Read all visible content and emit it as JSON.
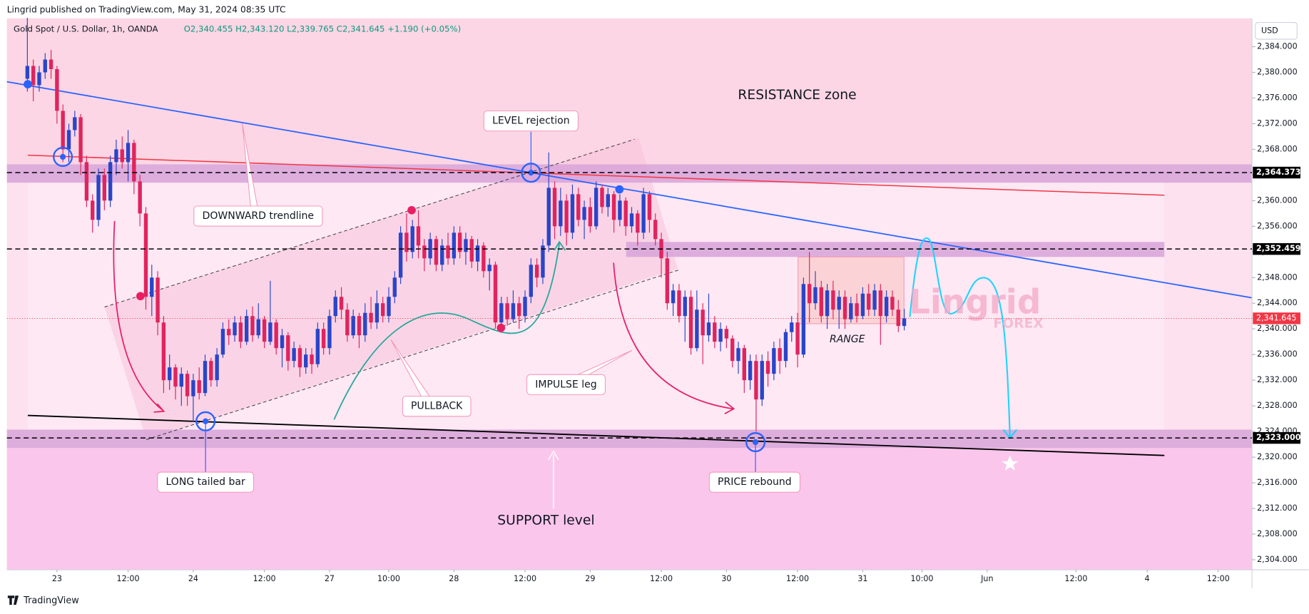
{
  "header": {
    "published": "Lingrid published on TradingView.com, May 31, 2024 08:35 UTC",
    "symbol": "Gold Spot / U.S. Dollar, 1h, OANDA",
    "ohlc": "O2,340.455 H2,343.120 L2,339.765 C2,341.645 +1.190 (+0.05%)",
    "currency": "USD"
  },
  "footer": {
    "brand": "TradingView"
  },
  "watermark": {
    "line1": "Lingrid",
    "line2": "FOREX"
  },
  "annotations": {
    "resistance": "RESISTANCE zone",
    "level_rejection": "LEVEL rejection",
    "downward": "DOWNWARD trendline",
    "pullback": "PULLBACK",
    "impulse": "IMPULSE leg",
    "long_tailed": "LONG tailed bar",
    "price_rebound": "PRICE rebound",
    "support": "SUPPORT level",
    "range": "RANGE"
  },
  "chart_data": {
    "type": "candlestick",
    "up_color": "#2a45c9",
    "down_color": "#e0245e",
    "grid": false,
    "x": [
      -5,
      -4,
      -3,
      -2,
      -1,
      0,
      1,
      2,
      3,
      4,
      5,
      6,
      7,
      8,
      9,
      10,
      11,
      12,
      13,
      14,
      15,
      16,
      17,
      18,
      19,
      20,
      21,
      22,
      23,
      24,
      25,
      26,
      27,
      28,
      29,
      30,
      31,
      32,
      33,
      34,
      35,
      36,
      37,
      38,
      39,
      40,
      41,
      42,
      43,
      44,
      45,
      46,
      47,
      48,
      49,
      50,
      51,
      52,
      53,
      54,
      55,
      56,
      57,
      58,
      59,
      60,
      61,
      62,
      63,
      64,
      65,
      66,
      67,
      68,
      69,
      70,
      71,
      72,
      73,
      74,
      75,
      76,
      77,
      78,
      79,
      80,
      81,
      82,
      83,
      84,
      85,
      86,
      87,
      88,
      89,
      90,
      91,
      92,
      93,
      94,
      95,
      96,
      97,
      98,
      99,
      100,
      101,
      102,
      103,
      104,
      105,
      106,
      107,
      108,
      109,
      110,
      111,
      112,
      113,
      114,
      115,
      116,
      117,
      118,
      119,
      120,
      121,
      122,
      123,
      124,
      125,
      126,
      127,
      128,
      129,
      130,
      131,
      132,
      133,
      134,
      135,
      136,
      137,
      138,
      139,
      140,
      141,
      142,
      143
    ],
    "open": [
      2379,
      2381,
      2378,
      2380,
      2382,
      2380.5,
      2374,
      2368,
      2371,
      2373,
      2366,
      2360,
      2357,
      2364,
      2360,
      2366,
      2368,
      2366,
      2369,
      2363,
      2358,
      2345,
      2348,
      2341,
      2332,
      2334,
      2331,
      2333,
      2329.5,
      2332,
      2330,
      2335,
      2332,
      2336,
      2340,
      2339,
      2341,
      2338,
      2342,
      2339,
      2341.5,
      2338,
      2341,
      2337,
      2339,
      2335,
      2337,
      2334,
      2336,
      2334.5,
      2340,
      2337,
      2342,
      2345,
      2343,
      2339,
      2342,
      2339,
      2342.5,
      2341,
      2344,
      2342,
      2345,
      2348,
      2355,
      2352,
      2356,
      2353,
      2351,
      2354,
      2350,
      2353,
      2351,
      2355,
      2352,
      2354,
      2350.5,
      2353,
      2349,
      2350,
      2341,
      2344,
      2341.5,
      2344,
      2342,
      2345,
      2350,
      2348,
      2353,
      2362,
      2356,
      2360,
      2355,
      2361,
      2357,
      2359,
      2356,
      2362,
      2359,
      2361,
      2357,
      2360,
      2356,
      2358,
      2355,
      2361,
      2357,
      2354,
      2351,
      2344,
      2346,
      2342,
      2345,
      2337,
      2343,
      2339,
      2341,
      2338,
      2340,
      2338.5,
      2335,
      2337,
      2332,
      2335,
      2329,
      2335,
      2333,
      2337,
      2335,
      2339.5,
      2341,
      2336,
      2347,
      2344,
      2346.5,
      2342,
      2346,
      2343,
      2345,
      2341.5,
      2344,
      2342,
      2345.5,
      2343,
      2346,
      2342,
      2345,
      2343,
      2340.455
    ],
    "high": [
      2388.5,
      2382,
      2381,
      2383,
      2383.5,
      2381,
      2375,
      2372,
      2374,
      2373.5,
      2367,
      2361,
      2365,
      2365,
      2367,
      2369.5,
      2370,
      2371,
      2369.5,
      2364,
      2359,
      2350,
      2349,
      2342,
      2336,
      2334.5,
      2334,
      2333.5,
      2333,
      2334,
      2336,
      2335.5,
      2337,
      2341,
      2341.5,
      2342,
      2342,
      2343,
      2343.5,
      2344,
      2342,
      2347.5,
      2341.5,
      2340,
      2339.5,
      2338,
      2337.5,
      2337,
      2337,
      2341,
      2341,
      2343,
      2346,
      2346.5,
      2344,
      2343,
      2342.5,
      2344,
      2345,
      2346,
      2345,
      2346.5,
      2349,
      2356,
      2358,
      2357,
      2358.5,
      2354,
      2355,
      2354.5,
      2354,
      2355,
      2356,
      2356,
      2355,
      2354.5,
      2354,
      2353.5,
      2351,
      2350.5,
      2345,
      2345,
      2346,
      2345,
      2346,
      2351,
      2351,
      2354,
      2367.5,
      2363,
      2362,
      2361,
      2362.5,
      2362,
      2360,
      2360.5,
      2363,
      2362.5,
      2362,
      2361.5,
      2361,
      2360.5,
      2359,
      2358.5,
      2362,
      2361.5,
      2358,
      2355,
      2352,
      2347,
      2347,
      2346,
      2346,
      2346,
      2344,
      2345.5,
      2342,
      2341,
      2340.5,
      2339,
      2338,
      2337.5,
      2336,
      2336,
      2336,
      2336.5,
      2338,
      2338.5,
      2340,
      2342,
      2342.5,
      2348,
      2352,
      2349,
      2347.5,
      2347,
      2347.5,
      2346,
      2346,
      2345,
      2345.5,
      2346.5,
      2347,
      2347,
      2347,
      2346,
      2346,
      2344.5,
      2343.12
    ],
    "low": [
      2377,
      2375.5,
      2377,
      2379,
      2379,
      2372,
      2366,
      2366,
      2370,
      2364,
      2359,
      2355,
      2356,
      2358.5,
      2359,
      2364,
      2365,
      2363,
      2361,
      2356,
      2343,
      2342,
      2339,
      2330,
      2330.5,
      2329,
      2328,
      2328,
      2325.5,
      2329,
      2329.5,
      2331,
      2331,
      2335.5,
      2337.5,
      2338,
      2337,
      2337.5,
      2338,
      2338.5,
      2337,
      2337.5,
      2336,
      2334,
      2333.5,
      2334,
      2332.5,
      2333,
      2333,
      2334,
      2336,
      2336,
      2341,
      2341.5,
      2338,
      2338.5,
      2337,
      2338,
      2340,
      2340,
      2341,
      2341,
      2344,
      2347,
      2350.5,
      2351,
      2351,
      2349,
      2350,
      2349,
      2349,
      2350,
      2350,
      2351,
      2350,
      2349.5,
      2349,
      2348,
      2346,
      2340,
      2339.5,
      2340.5,
      2341,
      2340,
      2341,
      2344,
      2346.5,
      2347,
      2352,
      2354,
      2354.5,
      2353,
      2354,
      2356,
      2354,
      2355,
      2355.5,
      2358,
      2357.5,
      2355,
      2356,
      2354.5,
      2355,
      2353,
      2354,
      2355,
      2353,
      2348,
      2343,
      2342,
      2341,
      2338,
      2336,
      2336.5,
      2334.5,
      2338,
      2337,
      2336.5,
      2337,
      2334,
      2333,
      2330,
      2330.5,
      2324,
      2328,
      2331,
      2332,
      2333,
      2334,
      2338,
      2334,
      2335.5,
      2341,
      2343,
      2341,
      2340,
      2341.5,
      2340,
      2340,
      2341,
      2341,
      2341.5,
      2342,
      2342,
      2337.5,
      2341,
      2342,
      2339.5,
      2339.765
    ],
    "close": [
      2381,
      2378,
      2380,
      2382,
      2380.5,
      2374,
      2368,
      2371,
      2373,
      2366,
      2360,
      2357,
      2364,
      2360,
      2366,
      2368,
      2366,
      2369,
      2363,
      2358,
      2345,
      2348,
      2341,
      2332,
      2334,
      2331,
      2333,
      2329.5,
      2332,
      2330,
      2335,
      2332,
      2336,
      2340,
      2339,
      2341,
      2338,
      2342,
      2339,
      2341.5,
      2338,
      2341,
      2337,
      2339,
      2335,
      2337,
      2334,
      2336,
      2334.5,
      2340,
      2337,
      2342,
      2345,
      2343,
      2339,
      2342,
      2339,
      2342.5,
      2341,
      2344,
      2342,
      2345,
      2348,
      2355,
      2352,
      2356,
      2353,
      2351,
      2354,
      2350,
      2353,
      2351,
      2355,
      2352,
      2354,
      2350.5,
      2353,
      2349,
      2350,
      2341,
      2344,
      2341.5,
      2344,
      2342,
      2345,
      2350,
      2348,
      2353,
      2362,
      2356,
      2360,
      2355,
      2361,
      2357,
      2359,
      2356,
      2362,
      2359,
      2361,
      2357,
      2360,
      2356,
      2358,
      2355,
      2361,
      2357,
      2354,
      2351,
      2344,
      2346,
      2342,
      2345,
      2337,
      2343,
      2339,
      2341,
      2338,
      2340,
      2338.5,
      2335,
      2337,
      2332,
      2335,
      2329,
      2335,
      2333,
      2337,
      2335,
      2339.5,
      2341,
      2336,
      2347,
      2344,
      2346.5,
      2342,
      2346,
      2343,
      2345,
      2341.5,
      2344,
      2342,
      2345.5,
      2343,
      2346,
      2342,
      2345,
      2343,
      2340.455,
      2341.645
    ],
    "xlim": [
      -8.45,
      201.7
    ],
    "xticks": [
      {
        "value": 0,
        "label": "23"
      },
      {
        "value": 12,
        "label": "12:00"
      },
      {
        "value": 23,
        "label": "24"
      },
      {
        "value": 35,
        "label": "12:00"
      },
      {
        "value": 46,
        "label": "27"
      },
      {
        "value": 56,
        "label": "10:00"
      },
      {
        "value": 67,
        "label": "28"
      },
      {
        "value": 79,
        "label": "12:00"
      },
      {
        "value": 90,
        "label": "29"
      },
      {
        "value": 102,
        "label": "12:00"
      },
      {
        "value": 113,
        "label": "30"
      },
      {
        "value": 125,
        "label": "12:00"
      },
      {
        "value": 136,
        "label": "31"
      },
      {
        "value": 146,
        "label": "10:00"
      },
      {
        "value": 157,
        "label": "Jun"
      },
      {
        "value": 172,
        "label": "12:00"
      },
      {
        "value": 184,
        "label": "4"
      },
      {
        "value": 196,
        "label": "12:00"
      }
    ],
    "ylim": [
      2302.44,
      2388.42
    ],
    "yticks": [
      {
        "value": 2304,
        "label": "2,304.000"
      },
      {
        "value": 2308,
        "label": "2,308.000"
      },
      {
        "value": 2312,
        "label": "2,312.000"
      },
      {
        "value": 2316,
        "label": "2,316.000"
      },
      {
        "value": 2320,
        "label": "2,320.000"
      },
      {
        "value": 2324,
        "label": "2,324.000"
      },
      {
        "value": 2328,
        "label": "2,328.000"
      },
      {
        "value": 2332,
        "label": "2,332.000"
      },
      {
        "value": 2336,
        "label": "2,336.000"
      },
      {
        "value": 2340,
        "label": "2,340.000"
      },
      {
        "value": 2344,
        "label": "2,344.000"
      },
      {
        "value": 2348,
        "label": "2,348.000"
      },
      {
        "value": 2352,
        "label": "2,352.000"
      },
      {
        "value": 2356,
        "label": "2,356.000"
      },
      {
        "value": 2360,
        "label": "2,360.000"
      },
      {
        "value": 2364,
        "label": "2,364.000"
      },
      {
        "value": 2368,
        "label": "2,368.000"
      },
      {
        "value": 2372,
        "label": "2,372.000"
      },
      {
        "value": 2376,
        "label": "2,376.000"
      },
      {
        "value": 2380,
        "label": "2,380.000"
      },
      {
        "value": 2384,
        "label": "2,384.000"
      }
    ],
    "levels": [
      {
        "value": 2364.373,
        "label": "2,364.373"
      },
      {
        "value": 2352.459,
        "label": "2,352.459"
      },
      {
        "value": 2323,
        "label": "2,323.000"
      }
    ],
    "last_price": {
      "value": 2341.645,
      "label": "2,341.645",
      "color": "#f23645"
    }
  }
}
